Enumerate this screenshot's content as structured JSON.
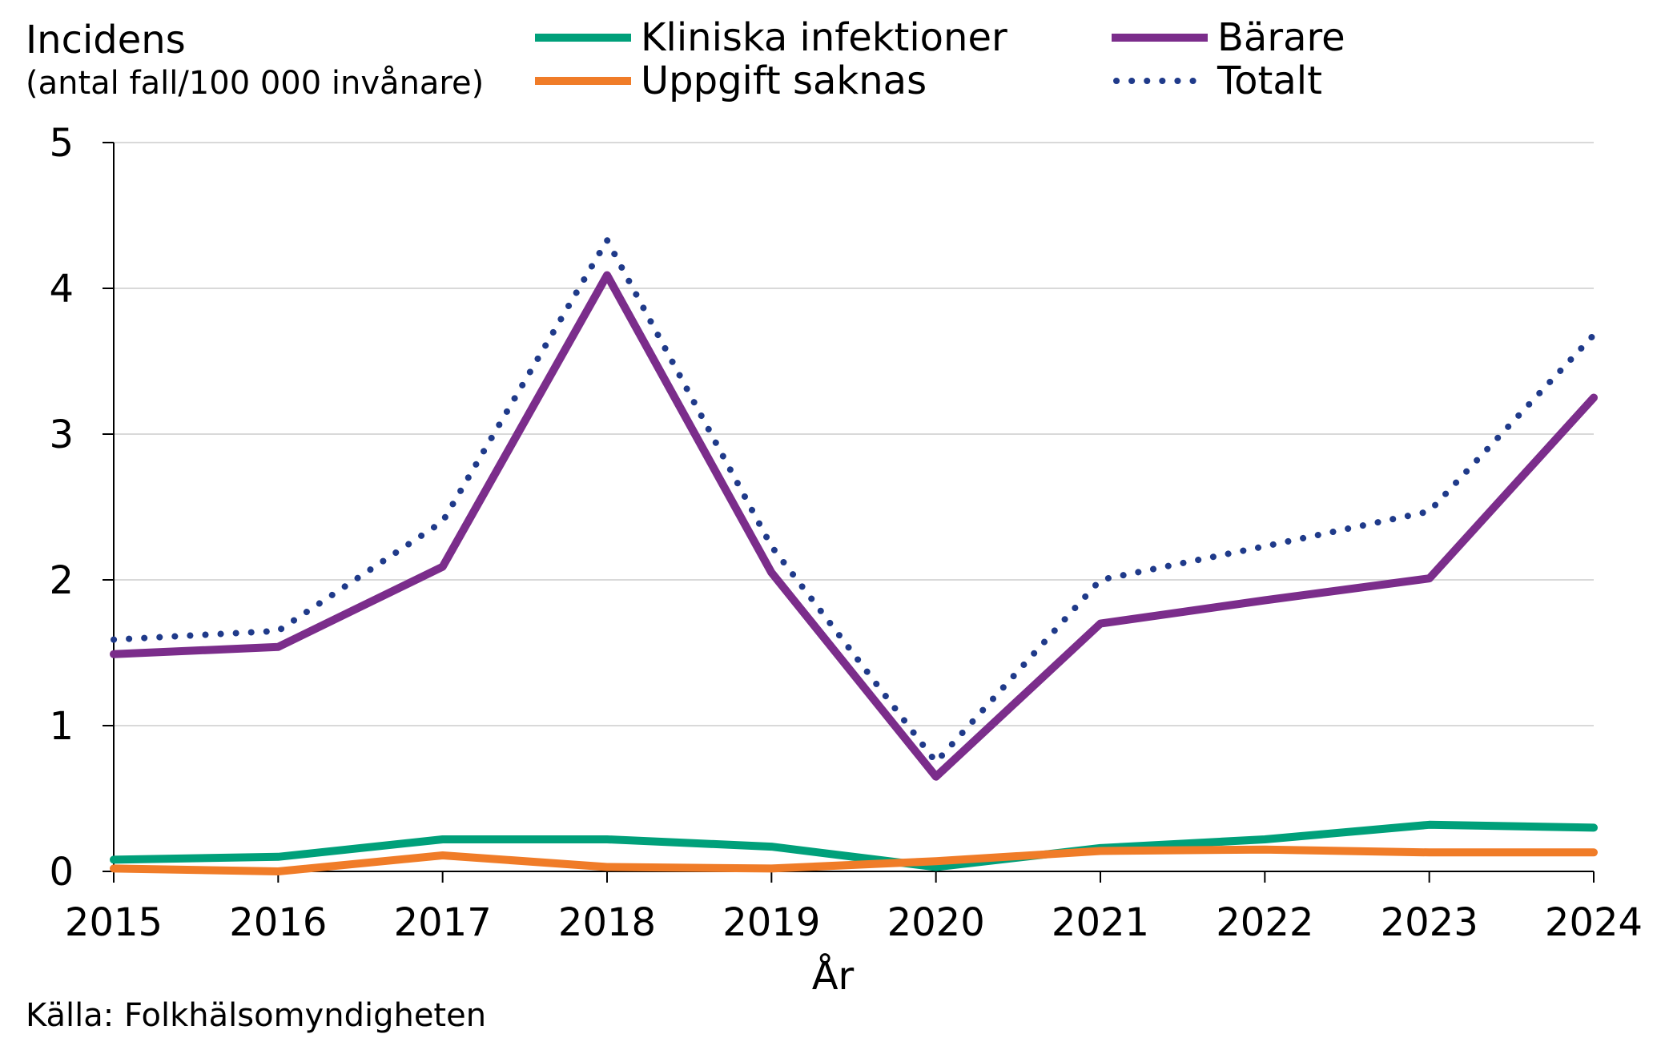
{
  "chart_data": {
    "type": "line",
    "ylabel_line1": "Incidens",
    "ylabel_line2": "(antal fall/100 000 invånare)",
    "xlabel": "År",
    "source": "Källa: Folkhälsomyndigheten",
    "x": [
      "2015",
      "2016",
      "2017",
      "2018",
      "2019",
      "2020",
      "2021",
      "2022",
      "2023",
      "2024"
    ],
    "ylim": [
      0,
      5
    ],
    "yticks": [
      "0",
      "1",
      "2",
      "3",
      "4",
      "5"
    ],
    "grid": true,
    "legend_position": "top",
    "series": [
      {
        "key": "kliniska",
        "name": "Kliniska infektioner",
        "color": "#00A07A",
        "style": "solid",
        "values": [
          0.08,
          0.1,
          0.22,
          0.22,
          0.17,
          0.03,
          0.16,
          0.22,
          0.32,
          0.3
        ]
      },
      {
        "key": "barare",
        "name": "Bärare",
        "color": "#7B2D8B",
        "style": "solid",
        "values": [
          1.49,
          1.54,
          2.09,
          4.09,
          2.05,
          0.65,
          1.7,
          1.86,
          2.01,
          3.25
        ]
      },
      {
        "key": "uppgift",
        "name": "Uppgift saknas",
        "color": "#F07C28",
        "style": "solid",
        "values": [
          0.02,
          0.0,
          0.11,
          0.03,
          0.02,
          0.07,
          0.14,
          0.15,
          0.13,
          0.13
        ]
      },
      {
        "key": "totalt",
        "name": "Totalt",
        "color": "#1F3A8A",
        "style": "dotted",
        "values": [
          1.59,
          1.65,
          2.4,
          4.33,
          2.23,
          0.75,
          2.0,
          2.23,
          2.47,
          3.68
        ]
      }
    ]
  }
}
